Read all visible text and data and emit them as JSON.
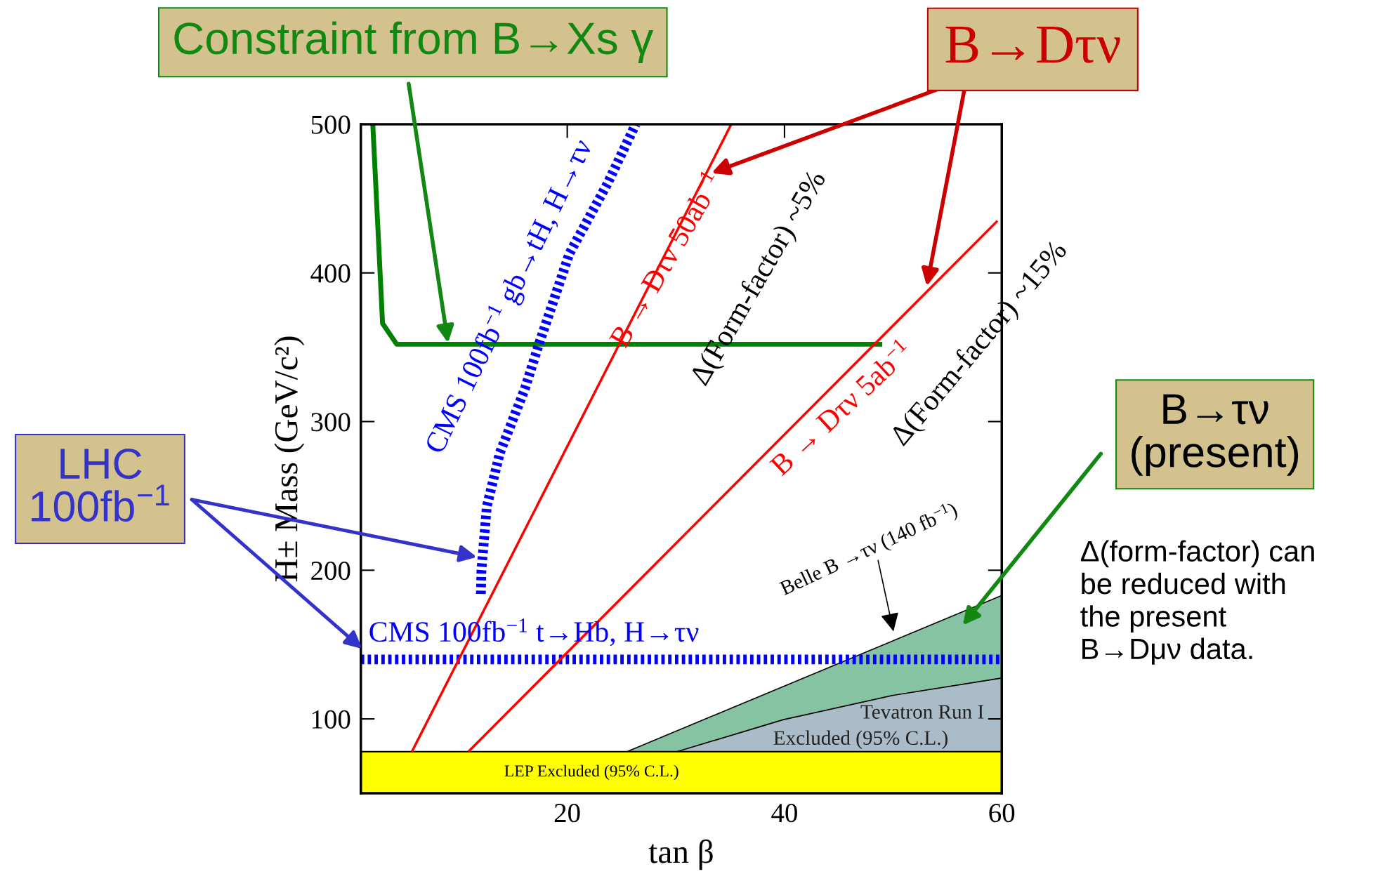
{
  "chart_data": {
    "type": "line",
    "xlabel": "tan β",
    "ylabel": "H± Mass (GeV/c²)",
    "xlim": [
      1,
      60
    ],
    "ylim": [
      50,
      500
    ],
    "xticks": [
      20,
      40,
      60
    ],
    "yticks": [
      100,
      200,
      300,
      400,
      500
    ],
    "grid": false,
    "legend": false,
    "series": [
      {
        "type": "area",
        "color": "#86c3a3",
        "x": [
          25.5,
          60
        ],
        "values": [
          78,
          183
        ]
      },
      {
        "type": "area",
        "color": "#a9bcc8",
        "x": [
          30.1,
          39.9,
          50.1,
          60
        ],
        "values": [
          78,
          99.5,
          116,
          127.5
        ]
      },
      {
        "color": "#008000",
        "line_style": "solid",
        "x": [
          2.1,
          3.0,
          4.3,
          49.0
        ],
        "values": [
          500,
          366,
          352,
          352
        ]
      },
      {
        "color": "#0000ff",
        "line_style": "dotted",
        "x": [
          12.05,
          12.1,
          12.6,
          13.8,
          16.1,
          17.3,
          20.2,
          23.7,
          26.3
        ],
        "values": [
          184,
          200,
          243,
          279,
          322,
          350,
          413,
          460,
          500
        ]
      },
      {
        "color": "#0000ff",
        "line_style": "dotted",
        "x": [
          1,
          60
        ],
        "values": [
          140,
          140
        ]
      },
      {
        "color": "#ff0000",
        "line_style": "solid",
        "x": [
          5.7,
          35.1
        ],
        "values": [
          78,
          500
        ]
      },
      {
        "color": "#ff0000",
        "line_style": "solid",
        "x": [
          10.9,
          59.6
        ],
        "values": [
          78,
          435
        ]
      }
    ],
    "bands": [
      {
        "axis": "y",
        "from": 50,
        "to": 78,
        "label": "LEP Excluded (95% C.L.)",
        "color": "#ffff00"
      }
    ],
    "annotations": [
      "CMS 100fb$^{−1}$ gb→tH, H→τν",
      "B → Dτν 50ab$^{−1}$",
      "Δ(Form-factor) ~5%",
      "B → Dτν 5ab$^{−1}$",
      "Δ(Form-factor) ~15%",
      "Belle B →τν (140 fb$^{−1}$)",
      "CMS 100fb$^{−1}$ t→Hb, H→τν",
      "Tevatron Run I",
      "Excluded (95% C.L.)",
      "Constraint from B→Xs γ",
      "B→Dτν",
      "LHC\n100fb$^{−1}$",
      "B→τν\n(present)",
      "Δ(form-factor) can\nbe reduced with\nthe present\nB→Dμν data."
    ]
  }
}
